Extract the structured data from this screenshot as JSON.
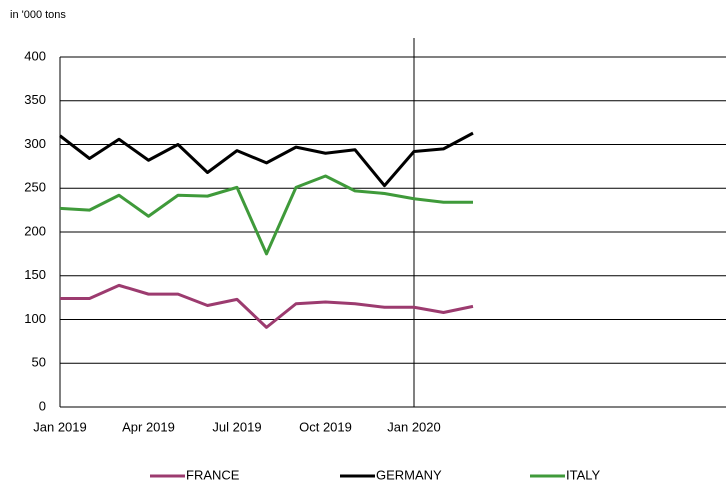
{
  "chart_data": {
    "type": "line",
    "y_axis_label": "in '000 tons",
    "categories": [
      "Jan 2019",
      null,
      null,
      "Apr 2019",
      null,
      null,
      "Jul 2019",
      null,
      null,
      "Oct 2019",
      null,
      null,
      "Jan 2020",
      null,
      null
    ],
    "series": [
      {
        "name": "FRANCE",
        "color": "#9c3b6f",
        "values": [
          124,
          124,
          139,
          129,
          129,
          116,
          123,
          91,
          118,
          120,
          118,
          114,
          114,
          108,
          115
        ]
      },
      {
        "name": "GERMANY",
        "color": "#000000",
        "values": [
          310,
          284,
          306,
          282,
          300,
          268,
          293,
          279,
          297,
          290,
          294,
          253,
          292,
          295,
          313
        ]
      },
      {
        "name": "ITALY",
        "color": "#3f9a3a",
        "values": [
          227,
          225,
          242,
          218,
          242,
          241,
          251,
          175,
          251,
          264,
          247,
          244,
          238,
          234,
          234
        ]
      }
    ],
    "ylim": [
      0,
      400
    ],
    "yticks": [
      0,
      50,
      100,
      150,
      200,
      250,
      300,
      350,
      400
    ],
    "grid": true,
    "legend": "bottom"
  }
}
